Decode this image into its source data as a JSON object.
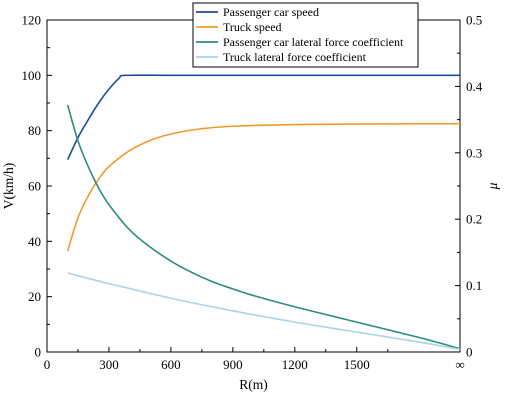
{
  "chart_data": {
    "type": "line",
    "xlabel": "R(m)",
    "ylabel_left": "V(km/h)",
    "ylabel_right": "μ",
    "x_ticks": [
      "0",
      "300",
      "600",
      "900",
      "1200",
      "1500",
      "∞"
    ],
    "y_left_ticks": [
      "0",
      "20",
      "40",
      "60",
      "80",
      "100",
      "120"
    ],
    "y_right_ticks": [
      "0",
      "0.1",
      "0.2",
      "0.3",
      "0.4",
      "0.5"
    ],
    "xlim": [
      0,
      2000
    ],
    "ylim_left": [
      0,
      120
    ],
    "ylim_right": [
      0,
      0.5
    ],
    "legend_position": "top-right",
    "grid": false,
    "series": [
      {
        "name": "Passenger car speed",
        "axis": "left",
        "color": "#1f4e96",
        "x": [
          100,
          150,
          200,
          250,
          300,
          350,
          380,
          600,
          900,
          1200,
          1500,
          1800,
          2000
        ],
        "y": [
          69.5,
          77.5,
          84,
          90,
          95,
          99,
          100,
          100,
          100,
          100,
          100,
          100,
          100
        ]
      },
      {
        "name": "Truck speed",
        "axis": "left",
        "color": "#f2992e",
        "x": [
          100,
          150,
          200,
          250,
          300,
          400,
          500,
          600,
          700,
          800,
          900,
          1000,
          1200,
          1500,
          1800,
          2000
        ],
        "y": [
          36.5,
          48.5,
          56.5,
          62.5,
          67,
          72.8,
          76.5,
          78.8,
          80.2,
          81.1,
          81.6,
          81.9,
          82.2,
          82.4,
          82.5,
          82.5
        ]
      },
      {
        "name": "Passenger car lateral force coefficient",
        "axis": "right",
        "color": "#2e8b7e",
        "x": [
          100,
          150,
          200,
          250,
          300,
          400,
          500,
          600,
          700,
          800,
          900,
          1000,
          1200,
          1500,
          1800,
          2000
        ],
        "y": [
          0.372,
          0.318,
          0.279,
          0.247,
          0.222,
          0.184,
          0.158,
          0.137,
          0.12,
          0.106,
          0.095,
          0.085,
          0.068,
          0.045,
          0.022,
          0.005
        ]
      },
      {
        "name": "Truck lateral force coefficient",
        "axis": "right",
        "color": "#a8d4ea",
        "x": [
          100,
          300,
          600,
          900,
          1200,
          1500,
          1800,
          2000
        ],
        "y": [
          0.119,
          0.103,
          0.081,
          0.062,
          0.045,
          0.03,
          0.015,
          0.004
        ]
      }
    ]
  }
}
